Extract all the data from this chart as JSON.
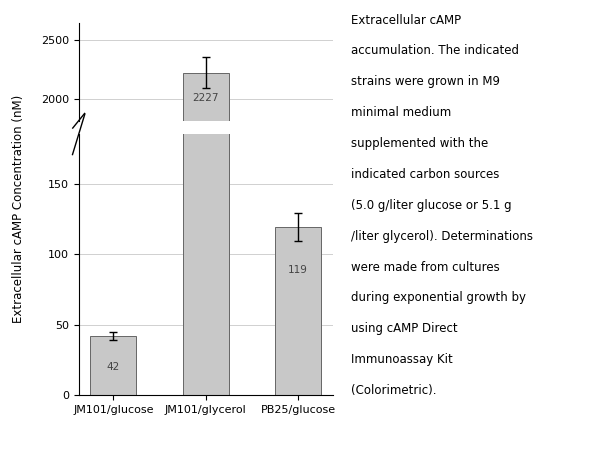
{
  "categories": [
    "JM101/glucose",
    "JM101/glycerol",
    "PB25/glucose"
  ],
  "values": [
    42,
    2227,
    119
  ],
  "errors": [
    3,
    130,
    10
  ],
  "bar_color": "#c8c8c8",
  "bar_edgecolor": "#666666",
  "ylabel": "Extracellular cAMP Concentration (nM)",
  "yticks_lower": [
    0,
    50,
    100,
    150
  ],
  "yticks_upper": [
    2000,
    2500
  ],
  "lower_ylim": [
    0,
    185
  ],
  "upper_ylim": [
    1820,
    2650
  ],
  "annotation_fontsize": 7.5,
  "axis_fontsize": 8.5,
  "tick_fontsize": 8,
  "bar_width": 0.5,
  "background_color": "#ffffff",
  "grid_color": "#d0d0d0",
  "annotation_values": [
    "42",
    "2227",
    "119"
  ],
  "side_text_lines": [
    "Extracellular cAMP",
    "accumulation. The indicated",
    "strains were grown in M9",
    "minimal medium",
    "supplemented with the",
    "indicated carbon sources",
    "(5.0 g/liter glucose or 5.1 g",
    "/liter glycerol). Determinations",
    "were made from cultures",
    "during exponential growth by",
    "using cAMP Direct",
    "Immunoassay Kit",
    "(Colorimetric)."
  ]
}
